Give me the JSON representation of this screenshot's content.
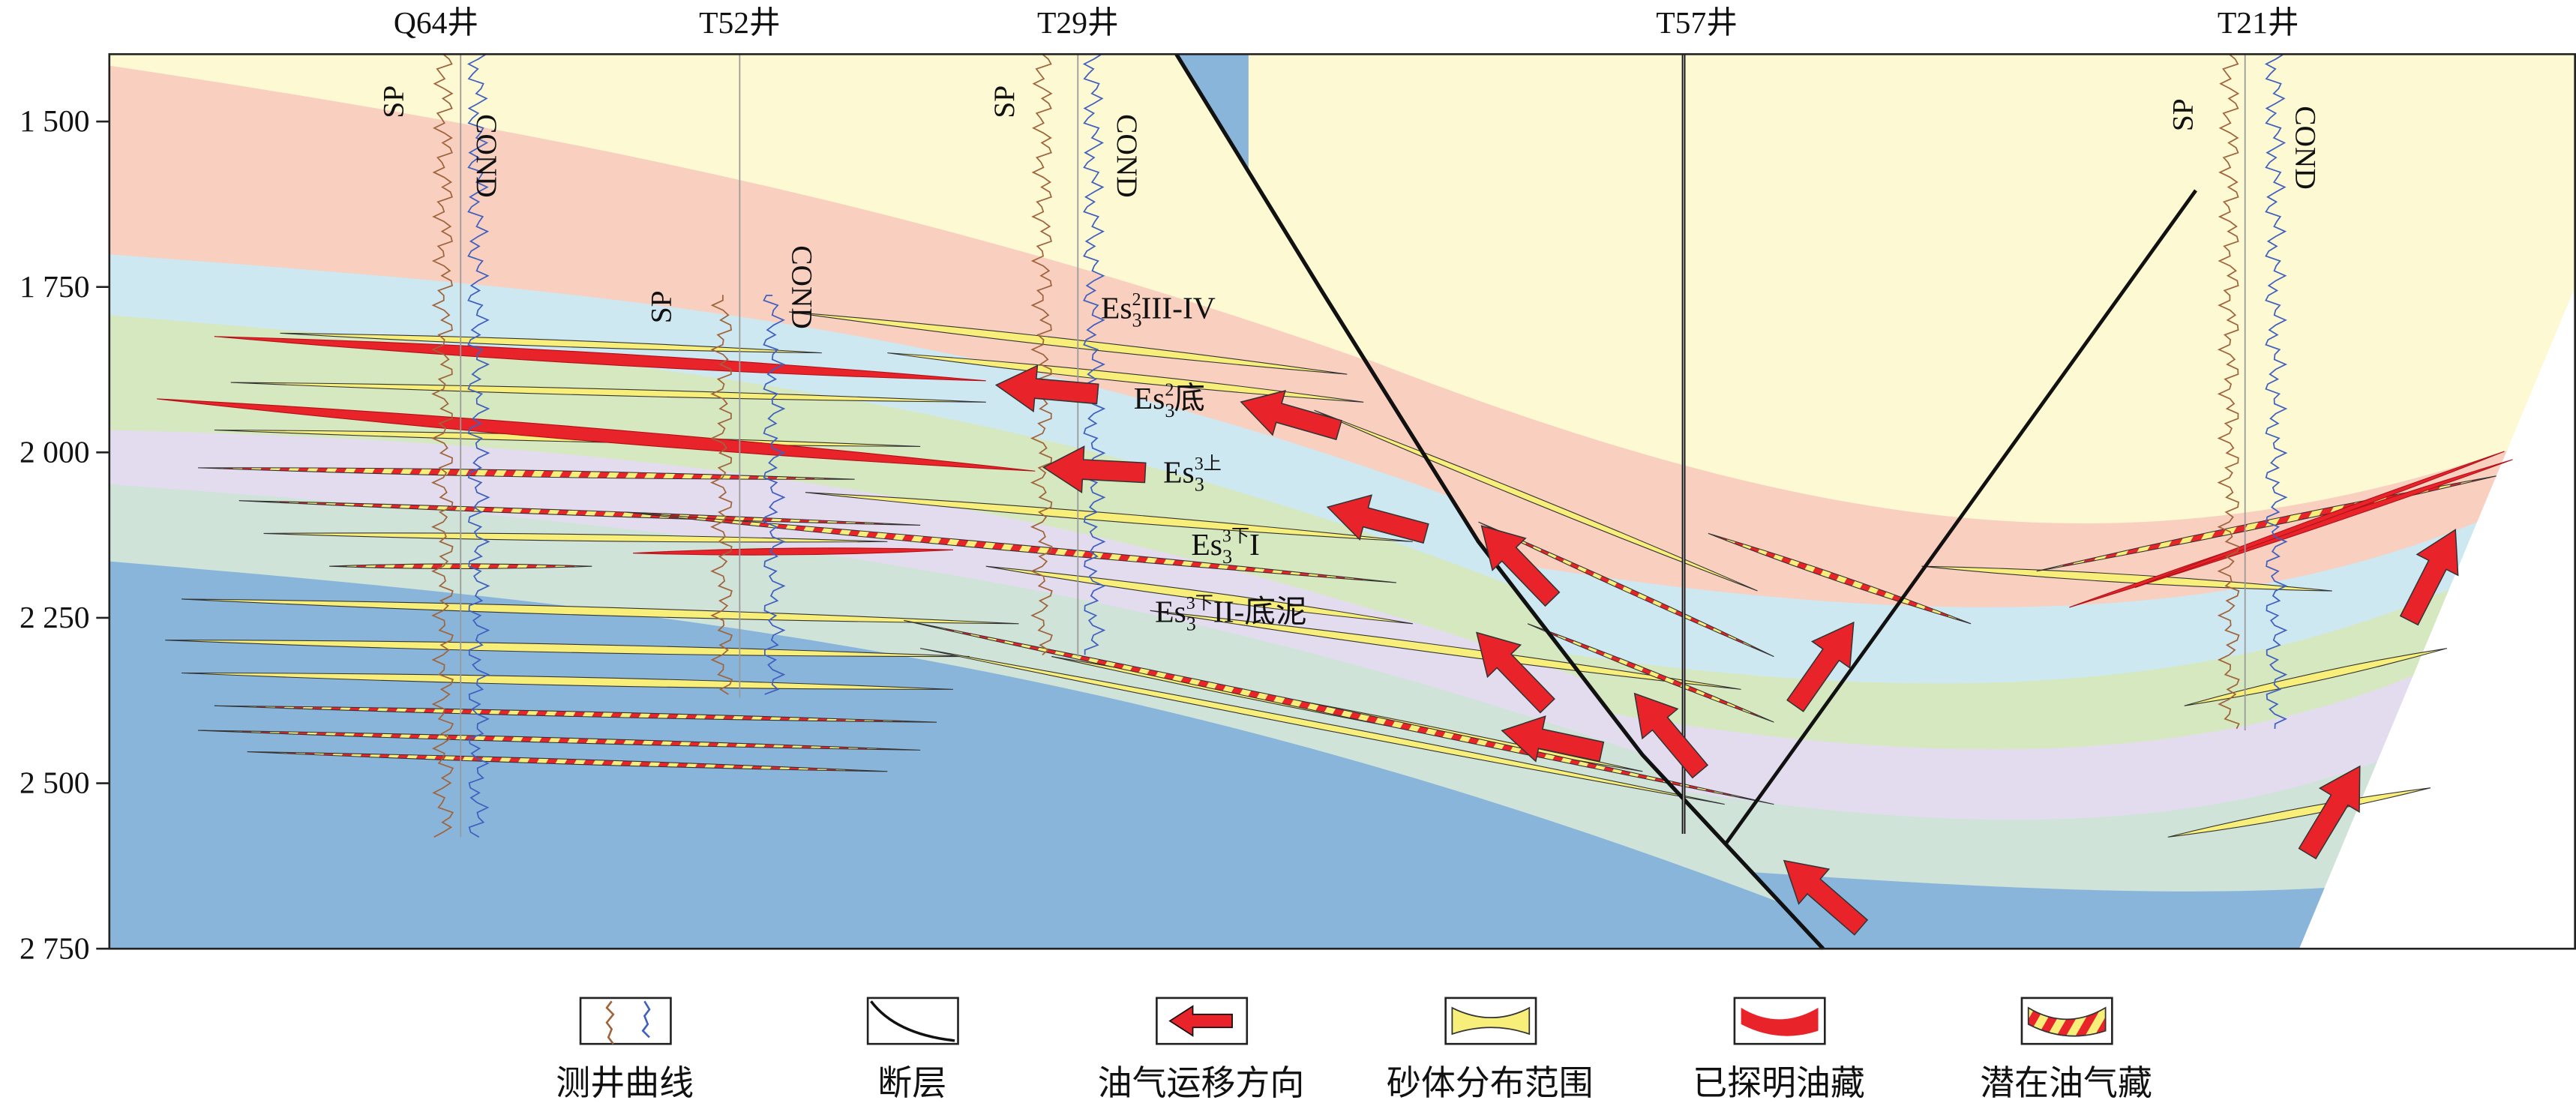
{
  "wells": [
    "Q64井",
    "T52井",
    "T29井",
    "T57井",
    "T21井"
  ],
  "log_labels": {
    "sp": "SP",
    "cond": "COND"
  },
  "depth_axis": {
    "ylim": [
      1400,
      2750
    ],
    "ticks": [
      {
        "value": 1500,
        "label": "1 500"
      },
      {
        "value": 1750,
        "label": "1 750"
      },
      {
        "value": 2000,
        "label": "2 000"
      },
      {
        "value": 2250,
        "label": "2 250"
      },
      {
        "value": 2500,
        "label": "2 500"
      },
      {
        "value": 2750,
        "label": "2 750"
      }
    ]
  },
  "layers": [
    {
      "text": "Es",
      "sub": "3",
      "sup": "2",
      "suffix": "III-IV"
    },
    {
      "text": "Es",
      "sub": "3",
      "sup": "2",
      "suffix": "底"
    },
    {
      "text": "Es",
      "sub": "3",
      "sup": "3上",
      "suffix": ""
    },
    {
      "text": "Es",
      "sub": "3",
      "sup": "3下",
      "suffix": "I"
    },
    {
      "text": "Es",
      "sub": "3",
      "sup": "3下",
      "suffix": "II-底泥"
    }
  ],
  "legend": [
    "测井曲线",
    "断层",
    "油气运移方向",
    "砂体分布范围",
    "已探明油藏",
    "潜在油气藏"
  ]
}
